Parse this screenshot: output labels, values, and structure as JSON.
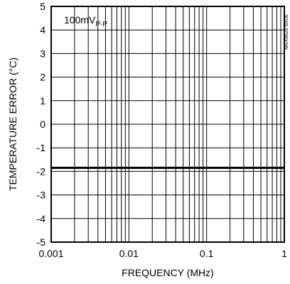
{
  "chart_data": {
    "type": "line",
    "xlabel": "FREQUENCY (MHz)",
    "ylabel": "TEMPERATURE ERROR (°C)",
    "xscale": "log",
    "xlim": [
      0.001,
      1
    ],
    "ylim": [
      -5,
      5
    ],
    "x_ticks": [
      0.001,
      0.01,
      0.1,
      1
    ],
    "x_tick_labels": [
      "0.001",
      "0.01",
      "0.1",
      "1"
    ],
    "y_ticks": [
      5,
      4,
      3,
      2,
      1,
      0,
      -1,
      -2,
      -3,
      -4,
      -5
    ],
    "y_tick_labels": [
      "5",
      "4",
      "3",
      "2",
      "1",
      "0",
      "-1",
      "-2",
      "-3",
      "-4",
      "-5"
    ],
    "grid": true,
    "annotation": {
      "main": "100mV",
      "subscript": "P-P"
    },
    "watermark": "MAX6626 toc06",
    "series": [
      {
        "x": [
          0.001,
          0.002,
          0.005,
          0.01,
          0.02,
          0.05,
          0.1,
          0.2,
          0.5,
          1
        ],
        "values": [
          -1.85,
          -1.85,
          -1.85,
          -1.85,
          -1.85,
          -1.85,
          -1.85,
          -1.85,
          -1.85,
          -1.85
        ]
      }
    ]
  }
}
